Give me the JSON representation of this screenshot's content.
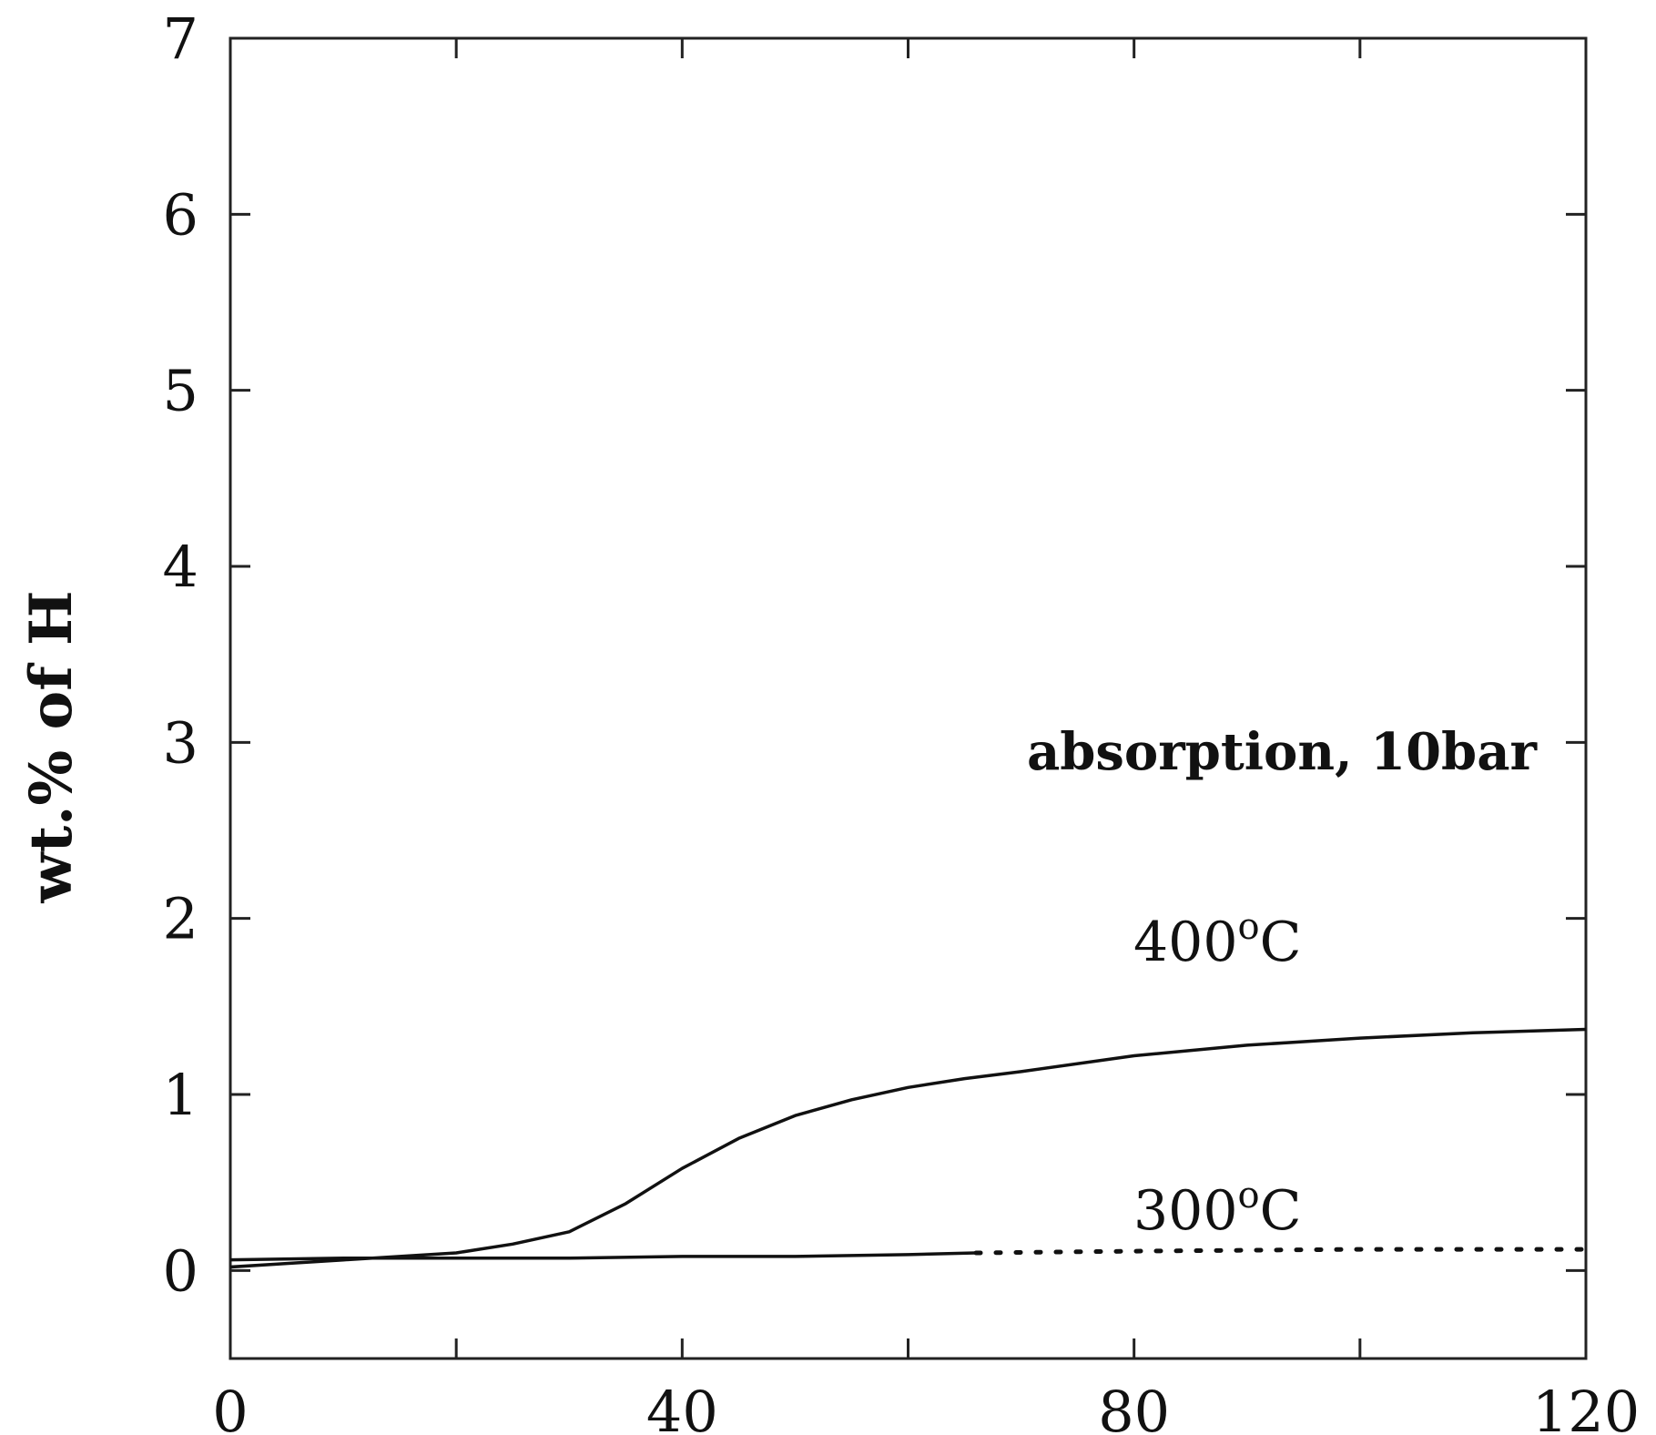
{
  "chart_data": {
    "type": "line",
    "title": "",
    "xlabel": "",
    "ylabel": "wt.% of H",
    "xlim": [
      0,
      120
    ],
    "ylim": [
      -0.5,
      7
    ],
    "xticks": [
      0,
      40,
      80,
      120
    ],
    "yticks": [
      0,
      1,
      2,
      3,
      4,
      5,
      6,
      7
    ],
    "grid": false,
    "annotations": [
      {
        "id": "cond",
        "text": "absorption, 10bar"
      },
      {
        "id": "t400",
        "text": "400",
        "unit": "C",
        "sup": "o"
      },
      {
        "id": "t300",
        "text": "300",
        "unit": "C",
        "sup": "o"
      }
    ],
    "series": [
      {
        "label_ref": "t400",
        "style": "solid",
        "x": [
          0,
          5,
          10,
          15,
          20,
          25,
          30,
          35,
          40,
          45,
          50,
          55,
          60,
          65,
          70,
          80,
          90,
          100,
          110,
          120
        ],
        "y": [
          0.02,
          0.04,
          0.06,
          0.08,
          0.1,
          0.15,
          0.22,
          0.38,
          0.58,
          0.75,
          0.88,
          0.97,
          1.04,
          1.09,
          1.13,
          1.22,
          1.28,
          1.32,
          1.35,
          1.37
        ]
      },
      {
        "label_ref": "t300",
        "style": "solid",
        "x": [
          0,
          10,
          20,
          30,
          40,
          50,
          60,
          66
        ],
        "y": [
          0.06,
          0.07,
          0.07,
          0.07,
          0.08,
          0.08,
          0.09,
          0.1
        ]
      },
      {
        "label_ref": "t300",
        "style": "dotted",
        "x": [
          66,
          80,
          100,
          120
        ],
        "y": [
          0.1,
          0.11,
          0.12,
          0.12
        ]
      }
    ]
  }
}
